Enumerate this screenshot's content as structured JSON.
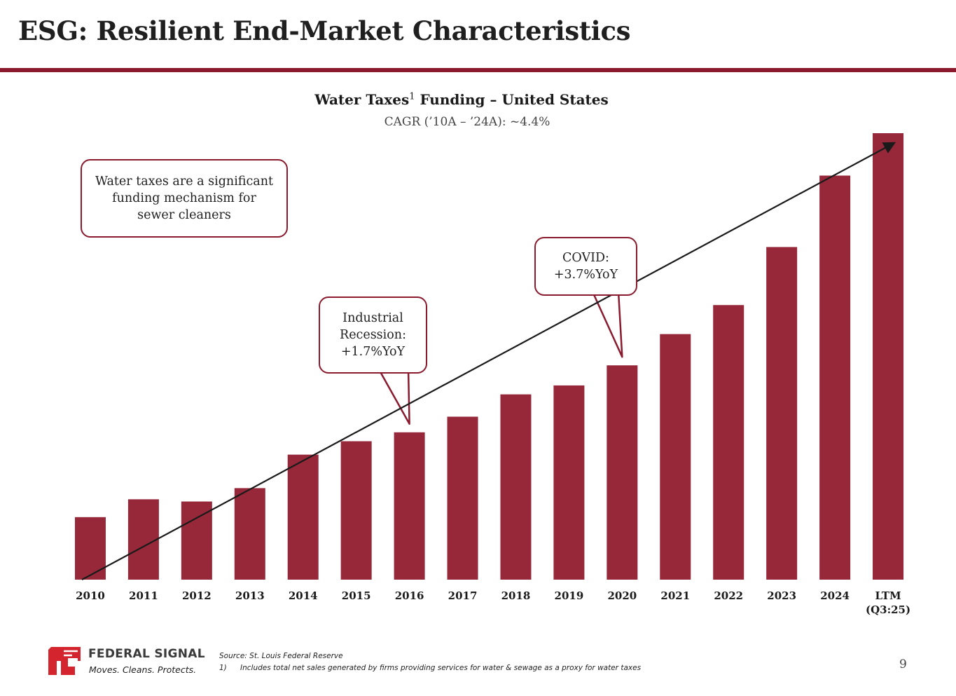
{
  "slide": {
    "title": "ESG: Resilient End-Market Characteristics",
    "page_number": "9",
    "accent_color": "#8b1a2e"
  },
  "chart_data": {
    "type": "bar",
    "title": "Water Taxes",
    "title_superscript": "1",
    "title_suffix": " Funding – United States",
    "subtitle": "CAGR (’10A – ’24A): ~4.4%",
    "categories": [
      "2010",
      "2011",
      "2012",
      "2013",
      "2014",
      "2015",
      "2016",
      "2017",
      "2018",
      "2019",
      "2020",
      "2021",
      "2022",
      "2023",
      "2024",
      "LTM"
    ],
    "category_sublabels": {
      "LTM": "(Q3:25)"
    },
    "series": [
      {
        "name": "Water Taxes Funding",
        "values": [
          14,
          18,
          17.5,
          20.5,
          28,
          31,
          33,
          36.5,
          41.5,
          43.5,
          48,
          55,
          61.5,
          74.5,
          90.5,
          100
        ]
      }
    ],
    "ylim": [
      0,
      100
    ],
    "y_axis_visible": false,
    "grid": false,
    "bar_color": "#962839",
    "trend_arrow": {
      "from": {
        "category": "2010",
        "value": 0
      },
      "to": {
        "category": "LTM",
        "value": 99
      }
    },
    "annotations": {
      "main": {
        "lines": [
          "Water taxes are a significant",
          "funding mechanism for",
          "sewer cleaners"
        ]
      },
      "recession": {
        "lines": [
          "Industrial",
          "Recession:",
          "+1.7%YoY"
        ],
        "category": "2016"
      },
      "covid": {
        "lines": [
          "COVID:",
          "+3.7%YoY"
        ],
        "category": "2020"
      }
    }
  },
  "footer": {
    "logo_name": "FEDERAL SIGNAL",
    "logo_tagline": "Moves. Cleans. Protects.",
    "source": "Source: St. Louis Federal Reserve",
    "footnote_number": "1)",
    "footnote_text": "Includes total net sales generated by firms providing services for water & sewage as a proxy for water taxes"
  }
}
